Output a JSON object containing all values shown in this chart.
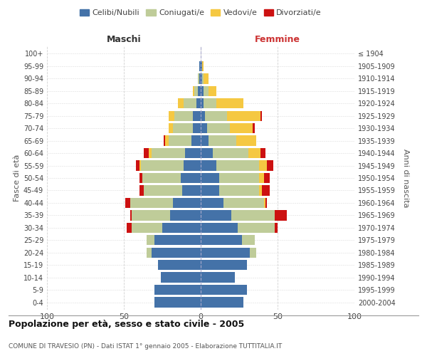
{
  "age_groups": [
    "0-4",
    "5-9",
    "10-14",
    "15-19",
    "20-24",
    "25-29",
    "30-34",
    "35-39",
    "40-44",
    "45-49",
    "50-54",
    "55-59",
    "60-64",
    "65-69",
    "70-74",
    "75-79",
    "80-84",
    "85-89",
    "90-94",
    "95-99",
    "100+"
  ],
  "birth_years": [
    "2000-2004",
    "1995-1999",
    "1990-1994",
    "1985-1989",
    "1980-1984",
    "1975-1979",
    "1970-1974",
    "1965-1969",
    "1960-1964",
    "1955-1959",
    "1950-1954",
    "1945-1949",
    "1940-1944",
    "1935-1939",
    "1930-1934",
    "1925-1929",
    "1920-1924",
    "1915-1919",
    "1910-1914",
    "1905-1909",
    "≤ 1904"
  ],
  "colors": {
    "celibi": "#4472a8",
    "coniugati": "#bfcc99",
    "vedovi": "#f5c842",
    "divorziati": "#cc1111"
  },
  "males": {
    "celibi": [
      30,
      30,
      26,
      28,
      32,
      30,
      25,
      20,
      18,
      12,
      13,
      11,
      10,
      6,
      5,
      5,
      3,
      2,
      1,
      1,
      0
    ],
    "coniugati": [
      0,
      0,
      0,
      0,
      3,
      5,
      20,
      25,
      28,
      25,
      25,
      28,
      22,
      15,
      13,
      12,
      8,
      2,
      1,
      0,
      0
    ],
    "vedovi": [
      0,
      0,
      0,
      0,
      0,
      0,
      0,
      0,
      0,
      0,
      0,
      1,
      2,
      2,
      3,
      4,
      4,
      1,
      0,
      0,
      0
    ],
    "divorziati": [
      0,
      0,
      0,
      0,
      0,
      0,
      3,
      1,
      3,
      3,
      2,
      2,
      3,
      1,
      0,
      0,
      0,
      0,
      0,
      0,
      0
    ]
  },
  "females": {
    "nubili": [
      28,
      30,
      22,
      30,
      32,
      27,
      24,
      20,
      15,
      12,
      12,
      10,
      8,
      5,
      4,
      3,
      2,
      2,
      1,
      1,
      0
    ],
    "coniugate": [
      0,
      0,
      0,
      0,
      4,
      8,
      24,
      28,
      26,
      26,
      26,
      28,
      23,
      18,
      15,
      14,
      8,
      3,
      1,
      0,
      0
    ],
    "vedove": [
      0,
      0,
      0,
      0,
      0,
      0,
      0,
      0,
      1,
      2,
      3,
      5,
      8,
      13,
      15,
      22,
      18,
      5,
      3,
      1,
      0
    ],
    "divorziate": [
      0,
      0,
      0,
      0,
      0,
      0,
      2,
      8,
      1,
      5,
      4,
      4,
      3,
      0,
      1,
      1,
      0,
      0,
      0,
      0,
      0
    ]
  },
  "title": "Popolazione per età, sesso e stato civile - 2005",
  "subtitle": "COMUNE DI TRAVESIO (PN) - Dati ISTAT 1° gennaio 2005 - Elaborazione TUTTITALIA.IT",
  "xlabel_left": "Maschi",
  "xlabel_right": "Femmine",
  "ylabel_left": "Fasce di età",
  "ylabel_right": "Anni di nascita",
  "xlim": 100,
  "legend_labels": [
    "Celibi/Nubili",
    "Coniugati/e",
    "Vedovi/e",
    "Divorziati/e"
  ],
  "background_color": "#ffffff",
  "grid_color": "#cccccc"
}
